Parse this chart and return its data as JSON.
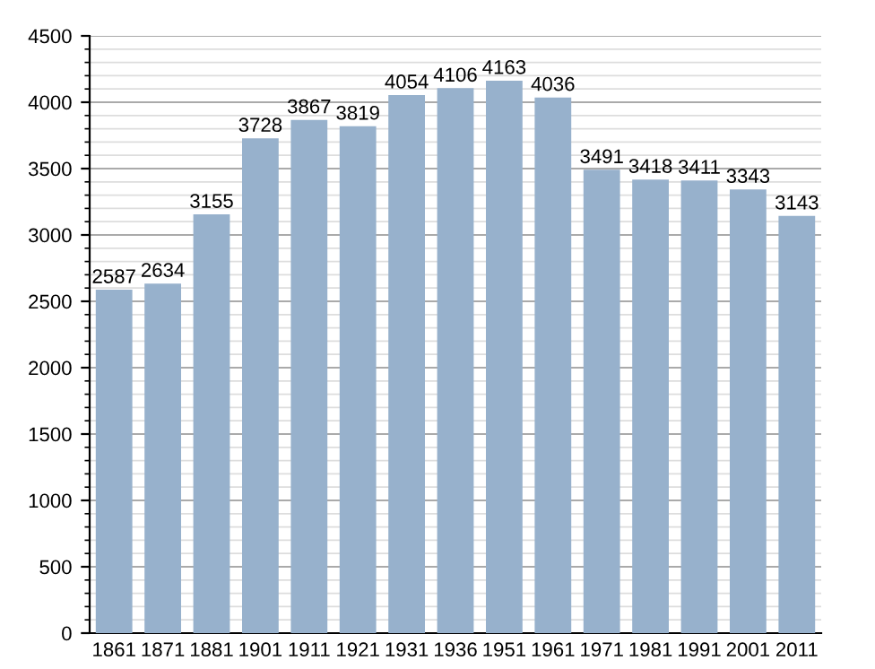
{
  "chart_data": {
    "type": "bar",
    "categories": [
      "1861",
      "1871",
      "1881",
      "1901",
      "1911",
      "1921",
      "1931",
      "1936",
      "1951",
      "1961",
      "1971",
      "1981",
      "1991",
      "2001",
      "2011"
    ],
    "values": [
      2587,
      2634,
      3155,
      3728,
      3867,
      3819,
      4054,
      4106,
      4163,
      4036,
      3491,
      3418,
      3411,
      3343,
      3143
    ],
    "color": "#97b1cc",
    "ylim": [
      0,
      4500
    ],
    "yticks": [
      0,
      500,
      1000,
      1500,
      2000,
      2500,
      3000,
      3500,
      4000,
      4500
    ],
    "grid": "y",
    "data_labels": true
  }
}
